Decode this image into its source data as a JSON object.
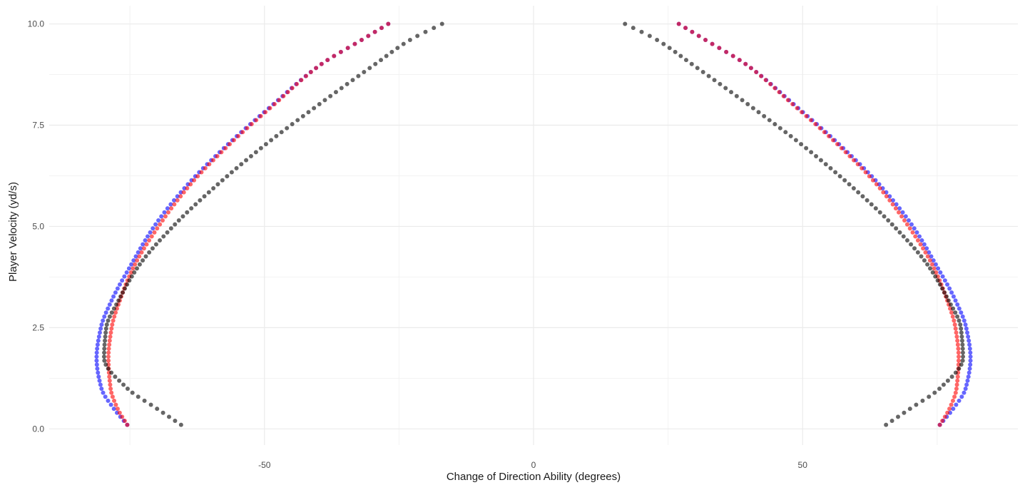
{
  "chart_data": {
    "type": "scatter",
    "title": "",
    "xlabel": "Change of Direction Ability (degrees)",
    "ylabel": "Player Velocity (yd/s)",
    "xlim": [
      -90,
      90
    ],
    "ylim": [
      -0.4,
      10.45
    ],
    "x_ticks": [
      {
        "value": -50,
        "label": "-50"
      },
      {
        "value": 0,
        "label": "0"
      },
      {
        "value": 50,
        "label": "50"
      }
    ],
    "x_minor_ticks": [
      -75,
      -25,
      25,
      75
    ],
    "y_ticks": [
      {
        "value": 0.0,
        "label": "0.0"
      },
      {
        "value": 2.5,
        "label": "2.5"
      },
      {
        "value": 5.0,
        "label": "5.0"
      },
      {
        "value": 7.5,
        "label": "7.5"
      },
      {
        "value": 10.0,
        "label": "10.0"
      }
    ],
    "y_minor_ticks": [
      1.25,
      3.75,
      6.25,
      8.75
    ],
    "grid": true,
    "legend": "none",
    "point_alpha": 0.6,
    "series": [
      {
        "color": "#0000ff",
        "symmetric_about_x0": true,
        "points": [
          [
            75.5,
            0.1
          ],
          [
            78,
            0.5
          ],
          [
            80.3,
            1.0
          ],
          [
            81.2,
            1.75
          ],
          [
            80.4,
            2.5
          ],
          [
            78.3,
            3.2
          ],
          [
            75,
            4.0
          ],
          [
            70.5,
            5.0
          ],
          [
            64.5,
            6.0
          ],
          [
            57,
            7.0
          ],
          [
            48.5,
            8.0
          ],
          [
            39.5,
            9.0
          ],
          [
            32,
            9.6
          ],
          [
            27,
            10.0
          ]
        ]
      },
      {
        "color": "#ff0000",
        "symmetric_about_x0": true,
        "points": [
          [
            75.5,
            0.1
          ],
          [
            77.3,
            0.5
          ],
          [
            78.6,
            1.0
          ],
          [
            79,
            1.75
          ],
          [
            78.4,
            2.5
          ],
          [
            76.8,
            3.2
          ],
          [
            74.3,
            4.0
          ],
          [
            69.7,
            5.0
          ],
          [
            64,
            6.0
          ],
          [
            56.7,
            7.0
          ],
          [
            48.3,
            8.0
          ],
          [
            39.5,
            9.0
          ],
          [
            32,
            9.6
          ],
          [
            27,
            10.0
          ]
        ]
      },
      {
        "color": "#000000",
        "symmetric_about_x0": true,
        "points": [
          [
            65.5,
            0.1
          ],
          [
            70,
            0.5
          ],
          [
            75.5,
            1.0
          ],
          [
            79.8,
            1.75
          ],
          [
            79.4,
            2.5
          ],
          [
            77,
            3.2
          ],
          [
            73.5,
            4.0
          ],
          [
            67,
            5.0
          ],
          [
            59,
            6.0
          ],
          [
            50,
            7.0
          ],
          [
            40,
            8.0
          ],
          [
            29.5,
            9.0
          ],
          [
            23,
            9.6
          ],
          [
            17,
            10.0
          ]
        ]
      }
    ]
  }
}
